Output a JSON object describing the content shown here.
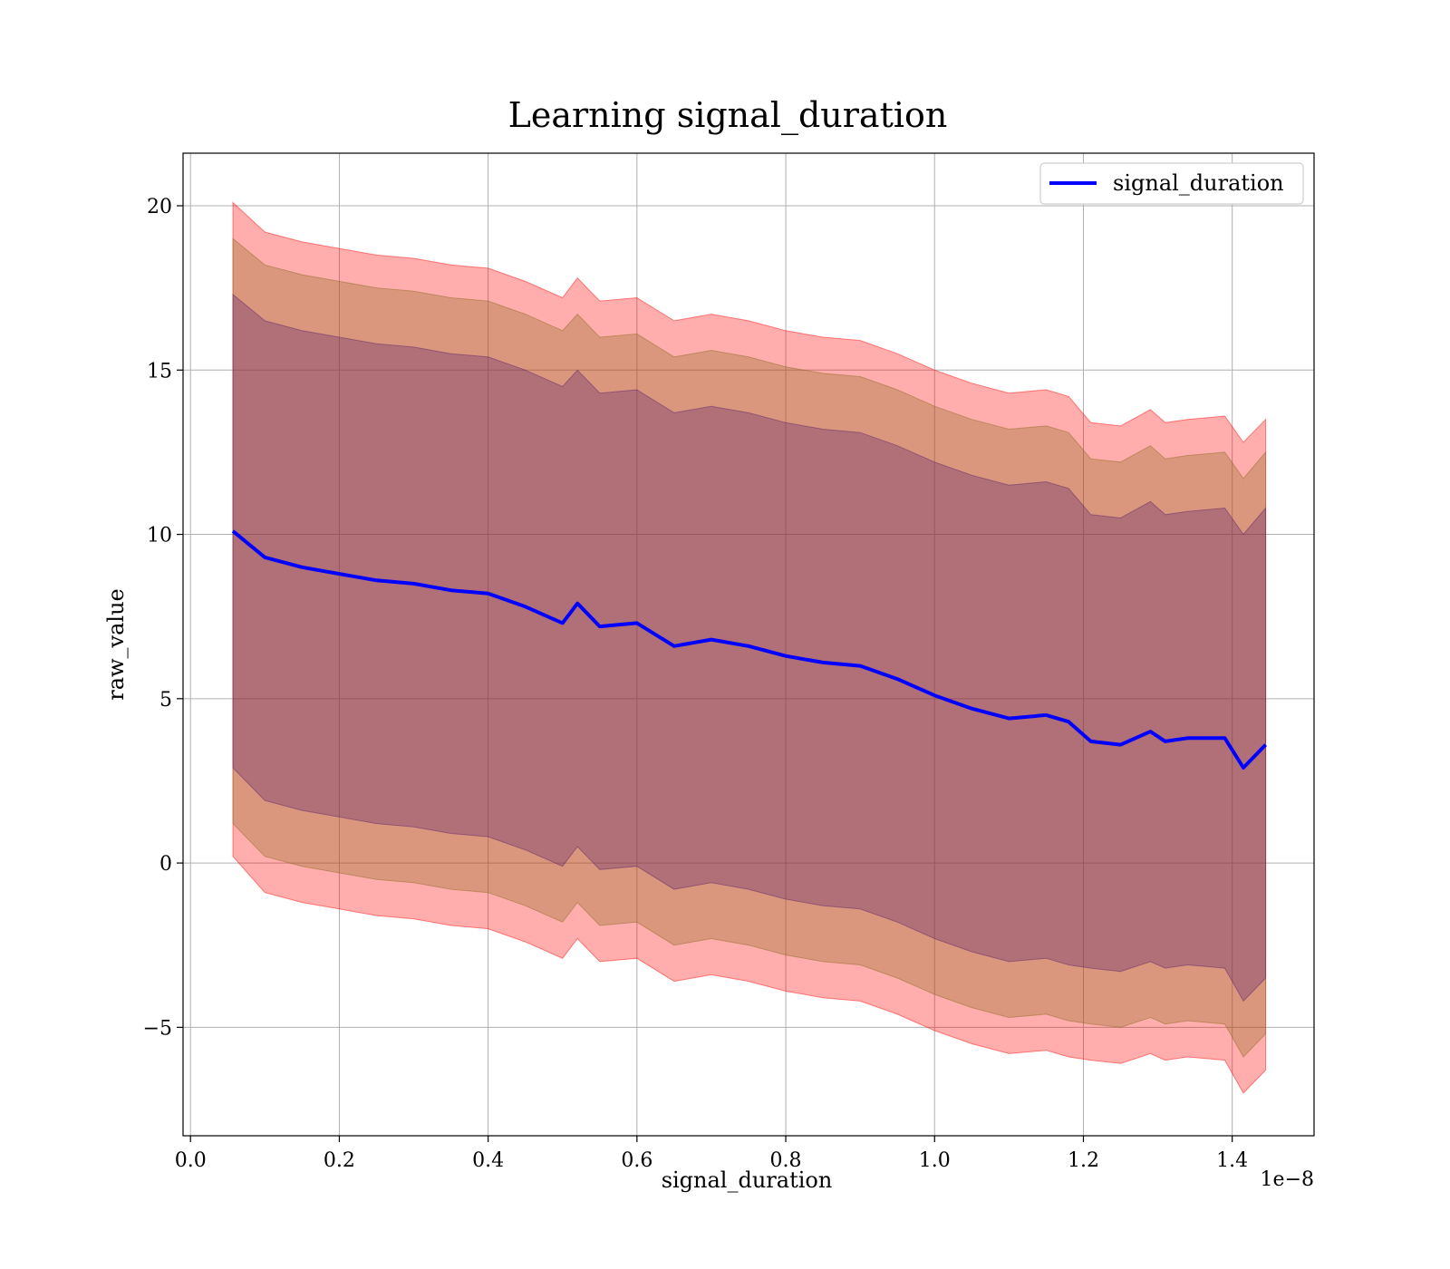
{
  "chart_data": {
    "type": "area",
    "title": "Learning signal_duration",
    "xlabel": "signal_duration",
    "ylabel": "raw_value",
    "x_offset_text": "1e−8",
    "xlim": [
      -0.01,
      1.51
    ],
    "ylim": [
      -8.3,
      21.6
    ],
    "xticks": [
      0.0,
      0.2,
      0.4,
      0.6,
      0.8,
      1.0,
      1.2,
      1.4
    ],
    "xtick_labels": [
      "0.0",
      "0.2",
      "0.4",
      "0.6",
      "0.8",
      "1.0",
      "1.2",
      "1.4"
    ],
    "yticks": [
      -5,
      0,
      5,
      10,
      15,
      20
    ],
    "ytick_labels": [
      "−5",
      "0",
      "5",
      "10",
      "15",
      "20"
    ],
    "grid": true,
    "legend": {
      "position": "top-right",
      "entries": [
        "signal_duration"
      ]
    },
    "colors": {
      "line": "#0000ff",
      "band_outer": "#ff0000",
      "band_middle": "#8b6a1c",
      "band_inner": "#5a1f6a"
    },
    "x": [
      0.057,
      0.1,
      0.15,
      0.2,
      0.25,
      0.3,
      0.35,
      0.4,
      0.45,
      0.5,
      0.52,
      0.55,
      0.6,
      0.65,
      0.7,
      0.75,
      0.8,
      0.85,
      0.9,
      0.95,
      1.0,
      1.05,
      1.1,
      1.15,
      1.18,
      1.21,
      1.25,
      1.29,
      1.31,
      1.34,
      1.39,
      1.415,
      1.445
    ],
    "series": [
      {
        "name": "signal_duration",
        "values": [
          10.1,
          9.3,
          9.0,
          8.8,
          8.6,
          8.5,
          8.3,
          8.2,
          7.8,
          7.3,
          7.9,
          7.2,
          7.3,
          6.6,
          6.8,
          6.6,
          6.3,
          6.1,
          6.0,
          5.6,
          5.1,
          4.7,
          4.4,
          4.5,
          4.3,
          3.7,
          3.6,
          4.0,
          3.7,
          3.8,
          3.8,
          2.9,
          3.6
        ]
      }
    ],
    "bands": [
      {
        "lower": [
          0.2,
          -0.9,
          -1.2,
          -1.4,
          -1.6,
          -1.7,
          -1.9,
          -2.0,
          -2.4,
          -2.9,
          -2.3,
          -3.0,
          -2.9,
          -3.6,
          -3.4,
          -3.6,
          -3.9,
          -4.1,
          -4.2,
          -4.6,
          -5.1,
          -5.5,
          -5.8,
          -5.7,
          -5.9,
          -6.0,
          -6.1,
          -5.8,
          -6.0,
          -5.9,
          -6.0,
          -7.0,
          -6.3
        ],
        "upper": [
          20.1,
          19.2,
          18.9,
          18.7,
          18.5,
          18.4,
          18.2,
          18.1,
          17.7,
          17.2,
          17.8,
          17.1,
          17.2,
          16.5,
          16.7,
          16.5,
          16.2,
          16.0,
          15.9,
          15.5,
          15.0,
          14.6,
          14.3,
          14.4,
          14.2,
          13.4,
          13.3,
          13.8,
          13.4,
          13.5,
          13.6,
          12.8,
          13.5
        ]
      },
      {
        "lower": [
          1.2,
          0.2,
          -0.1,
          -0.3,
          -0.5,
          -0.6,
          -0.8,
          -0.9,
          -1.3,
          -1.8,
          -1.2,
          -1.9,
          -1.8,
          -2.5,
          -2.3,
          -2.5,
          -2.8,
          -3.0,
          -3.1,
          -3.5,
          -4.0,
          -4.4,
          -4.7,
          -4.6,
          -4.8,
          -4.9,
          -5.0,
          -4.7,
          -4.9,
          -4.8,
          -4.9,
          -5.9,
          -5.2
        ],
        "upper": [
          19.0,
          18.2,
          17.9,
          17.7,
          17.5,
          17.4,
          17.2,
          17.1,
          16.7,
          16.2,
          16.7,
          16.0,
          16.1,
          15.4,
          15.6,
          15.4,
          15.1,
          14.9,
          14.8,
          14.4,
          13.9,
          13.5,
          13.2,
          13.3,
          13.1,
          12.3,
          12.2,
          12.7,
          12.3,
          12.4,
          12.5,
          11.7,
          12.5
        ]
      },
      {
        "lower": [
          2.9,
          1.9,
          1.6,
          1.4,
          1.2,
          1.1,
          0.9,
          0.8,
          0.4,
          -0.1,
          0.5,
          -0.2,
          -0.1,
          -0.8,
          -0.6,
          -0.8,
          -1.1,
          -1.3,
          -1.4,
          -1.8,
          -2.3,
          -2.7,
          -3.0,
          -2.9,
          -3.1,
          -3.2,
          -3.3,
          -3.0,
          -3.2,
          -3.1,
          -3.2,
          -4.2,
          -3.5
        ],
        "upper": [
          17.3,
          16.5,
          16.2,
          16.0,
          15.8,
          15.7,
          15.5,
          15.4,
          15.0,
          14.5,
          15.0,
          14.3,
          14.4,
          13.7,
          13.9,
          13.7,
          13.4,
          13.2,
          13.1,
          12.7,
          12.2,
          11.8,
          11.5,
          11.6,
          11.4,
          10.6,
          10.5,
          11.0,
          10.6,
          10.7,
          10.8,
          10.0,
          10.8
        ]
      }
    ]
  }
}
